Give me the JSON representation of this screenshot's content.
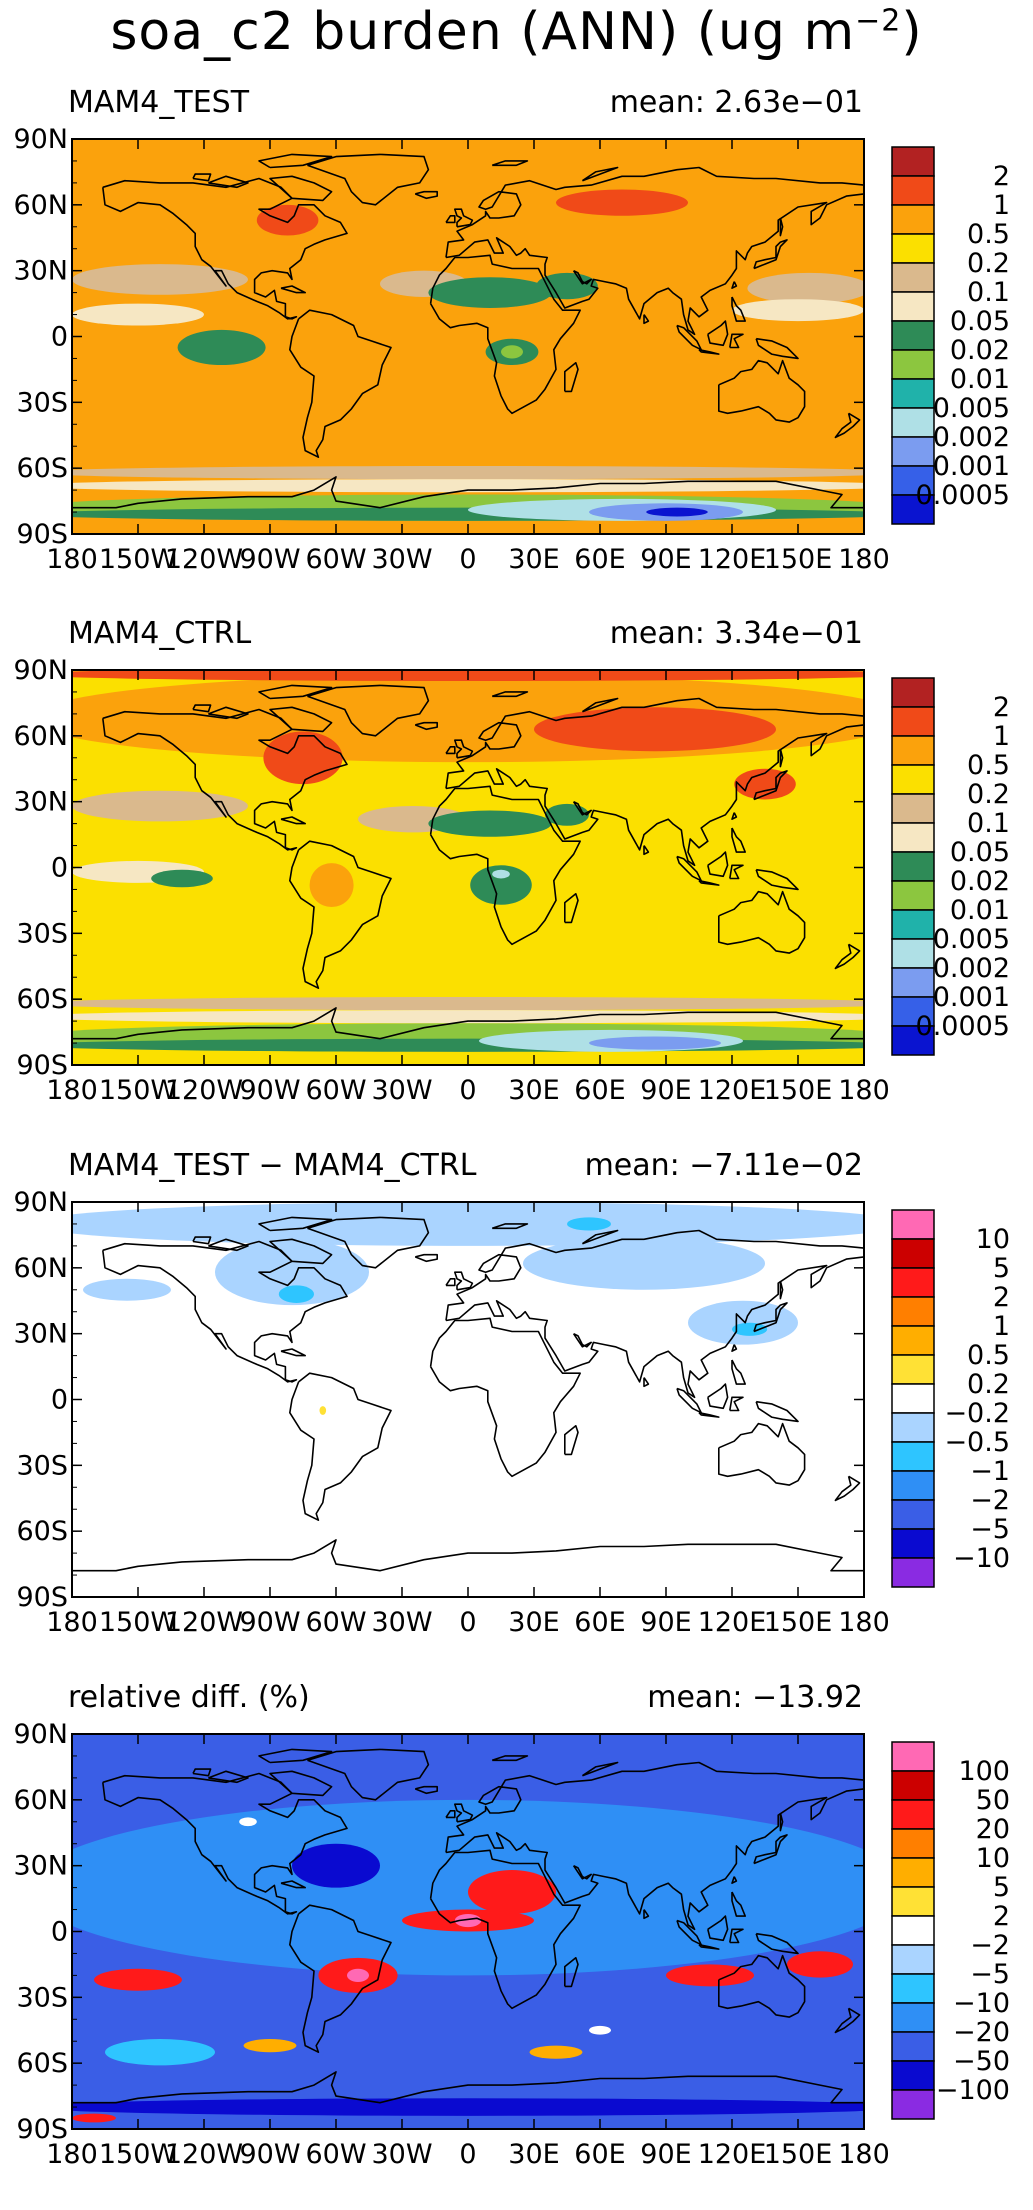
{
  "figure": {
    "title_main": "soa_c2 burden (ANN) (ug m",
    "title_exp": "−2",
    "title_close": ")"
  },
  "x_ticks": [
    "180",
    "150W",
    "120W",
    "90W",
    "60W",
    "30W",
    "0",
    "30E",
    "60E",
    "90E",
    "120E",
    "150E",
    "180"
  ],
  "y_ticks": [
    "90N",
    "60N",
    "30N",
    "0",
    "30S",
    "60S",
    "90S"
  ],
  "panels": [
    {
      "title": "MAM4_TEST",
      "mean": "mean: 2.63e−01",
      "legend": {
        "levels": [
          "2",
          "1",
          "0.5",
          "0.2",
          "0.1",
          "0.05",
          "0.02",
          "0.01",
          "0.005",
          "0.002",
          "0.001",
          "0.0005"
        ],
        "colors": [
          "#b22222",
          "#f04a18",
          "#fba20c",
          "#fbe000",
          "#dab98d",
          "#f6e7c3",
          "#2e8b57",
          "#8cc63f",
          "#20b2aa",
          "#afe0e6",
          "#7b9cf0",
          "#3660e8",
          "#0a14d0"
        ]
      }
    },
    {
      "title": "MAM4_CTRL",
      "mean": "mean: 3.34e−01",
      "legend": {
        "levels": [
          "2",
          "1",
          "0.5",
          "0.2",
          "0.1",
          "0.05",
          "0.02",
          "0.01",
          "0.005",
          "0.002",
          "0.001",
          "0.0005"
        ],
        "colors": [
          "#b22222",
          "#f04a18",
          "#fba20c",
          "#fbe000",
          "#dab98d",
          "#f6e7c3",
          "#2e8b57",
          "#8cc63f",
          "#20b2aa",
          "#afe0e6",
          "#7b9cf0",
          "#3660e8",
          "#0a14d0"
        ]
      }
    },
    {
      "title": "MAM4_TEST − MAM4_CTRL",
      "mean": "mean: −7.11e−02",
      "legend": {
        "levels": [
          "10",
          "5",
          "2",
          "1",
          "0.5",
          "0.2",
          "−0.2",
          "−0.5",
          "−1",
          "−2",
          "−5",
          "−10"
        ],
        "colors": [
          "#ff69b4",
          "#cc0000",
          "#ff1a1a",
          "#ff7f00",
          "#ffae00",
          "#ffe135",
          "#ffffff",
          "#aad4ff",
          "#2ec5ff",
          "#2f8ff5",
          "#3a5ee6",
          "#0a0ad0",
          "#8a2be2"
        ]
      }
    },
    {
      "title": "relative diff. (%)",
      "mean": "mean: −13.92",
      "legend": {
        "levels": [
          "100",
          "50",
          "20",
          "10",
          "5",
          "2",
          "−2",
          "−5",
          "−10",
          "−20",
          "−50",
          "−100"
        ],
        "colors": [
          "#ff69b4",
          "#cc0000",
          "#ff1a1a",
          "#ff7f00",
          "#ffae00",
          "#ffe135",
          "#ffffff",
          "#aad4ff",
          "#2ec5ff",
          "#2f8ff5",
          "#3a5ee6",
          "#0a0ad0",
          "#8a2be2"
        ]
      }
    }
  ]
}
